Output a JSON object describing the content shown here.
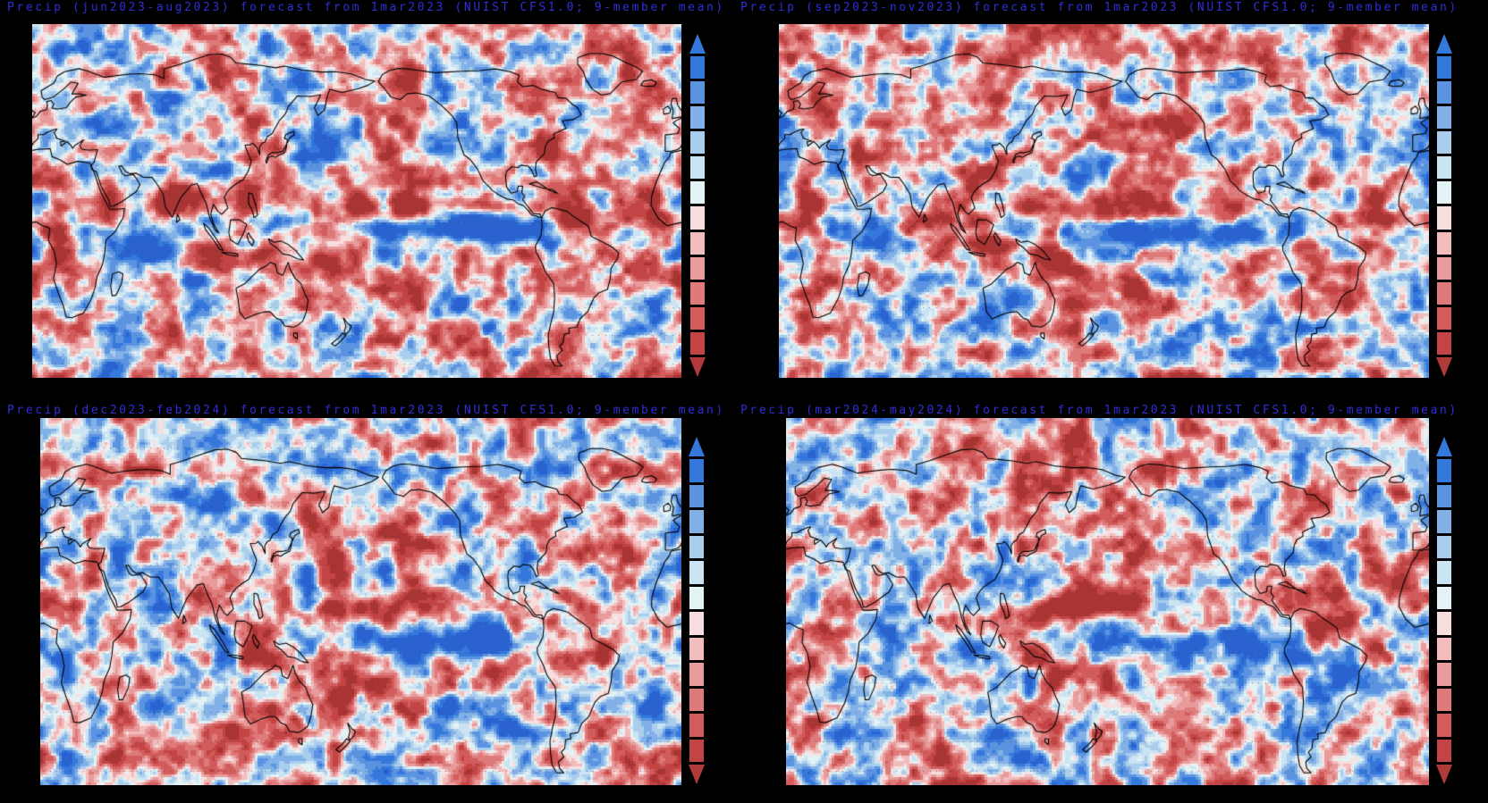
{
  "figure": {
    "background": "#000000",
    "title_color": "#2e2ed8"
  },
  "chart_data": {
    "type": "heatmap",
    "variable": "Precip",
    "model": "NUIST CFS1.0",
    "ensemble": "9-member mean",
    "forecast_initialization": "1mar2023",
    "map": {
      "projection": "equirectangular",
      "lon_range": [
        0,
        360
      ],
      "lat_range": [
        -60,
        90
      ],
      "coastline_color": "#000000",
      "grid_dot_color": "rgba(45,45,45,0.55)",
      "grid_lat_step_deg": 12
    },
    "thresholds": [
      -1.15,
      -0.88,
      -0.62,
      -0.42,
      -0.26,
      -0.12,
      0,
      0.12,
      0.26,
      0.42,
      0.62,
      0.88,
      1.15
    ],
    "field_palette": [
      "#a83434",
      "#c24444",
      "#d25c5c",
      "#de7a7a",
      "#e89b9b",
      "#f1bcbc",
      "#f8dede",
      "#e3f2f5",
      "#cbe4f3",
      "#a9cdec",
      "#82b1e7",
      "#5b93e0",
      "#3578dc",
      "#2a63d0"
    ],
    "colorbar": {
      "orientation": "vertical",
      "colors_top_to_bottom": [
        "#3578dc",
        "#5b93e0",
        "#82b1e7",
        "#a9cdec",
        "#cbe4f3",
        "#e3f2f5",
        "#f8dede",
        "#f1bcbc",
        "#e89b9b",
        "#de7a7a",
        "#d25c5c",
        "#c24444"
      ],
      "top_arrow": "#3578dc",
      "bottom_arrow": "#b03a3a",
      "labels": []
    },
    "bias": -0.02,
    "anomaly_sign_convention": "amp > 0 = wet anomaly (blue), amp < 0 = dry anomaly (red); features are [lon, lat, rx_deg, ry_deg, amp, tilt_deg]",
    "panels": [
      {
        "id": "panel-jja2023",
        "season": "jun2023-aug2023",
        "title": "Precip (jun2023-aug2023) forecast from 1mar2023 (NUIST CFS1.0; 9-member mean)",
        "seed": 11,
        "anomaly_features": [
          [
            225,
            4,
            58,
            5.5,
            1.55,
            0
          ],
          [
            263,
            2,
            22,
            4.5,
            1.1,
            0
          ],
          [
            196,
            13,
            46,
            5,
            -1.35,
            0
          ],
          [
            245,
            14,
            22,
            4.5,
            -0.85,
            0
          ],
          [
            80,
            17,
            14,
            8,
            -1.2,
            0
          ],
          [
            82,
            14,
            13,
            7,
            -1.0,
            0
          ],
          [
            102,
            16,
            11,
            7,
            -0.9,
            0
          ],
          [
            95,
            -8,
            14,
            6,
            -1.35,
            0
          ],
          [
            112,
            -9,
            12,
            5,
            -1.0,
            0
          ],
          [
            145,
            10,
            18,
            8,
            0.9,
            0
          ],
          [
            152,
            -6,
            12,
            6,
            0.6,
            0
          ],
          [
            172,
            -14,
            20,
            6,
            -1.2,
            -22
          ],
          [
            200,
            -22,
            20,
            6,
            -0.95,
            -22
          ],
          [
            62,
            -6,
            20,
            7,
            1.2,
            0
          ],
          [
            48,
            12,
            12,
            7,
            -0.9,
            0
          ],
          [
            310,
            7,
            26,
            6,
            -1.1,
            0
          ],
          [
            338,
            11,
            13,
            5,
            -0.75,
            0
          ],
          [
            237,
            -32,
            20,
            8,
            0.65,
            0
          ],
          [
            158,
            37,
            16,
            7,
            0.55,
            0
          ],
          [
            120,
            -27,
            16,
            8,
            -0.5,
            0
          ],
          [
            22,
            -6,
            13,
            8,
            -0.6,
            0
          ],
          [
            355,
            45,
            14,
            8,
            -0.45,
            0
          ],
          [
            255,
            50,
            18,
            8,
            0.45,
            0
          ],
          [
            288,
            37,
            10,
            6,
            -0.6,
            0
          ],
          [
            35,
            25,
            15,
            8,
            -0.5,
            0
          ]
        ]
      },
      {
        "id": "panel-son2023",
        "season": "sep2023-nov2023",
        "title": "Precip (sep2023-nov2023) forecast from 1mar2023 (NUIST CFS1.0; 9-member mean)",
        "seed": 22,
        "anomaly_features": [
          [
            215,
            2,
            55,
            5,
            1.45,
            0
          ],
          [
            260,
            0,
            22,
            4.5,
            1.05,
            0
          ],
          [
            192,
            10,
            46,
            5,
            -1.2,
            0
          ],
          [
            118,
            -5,
            18,
            8,
            -1.35,
            0
          ],
          [
            142,
            -7,
            12,
            6,
            -1.0,
            0
          ],
          [
            165,
            -15,
            22,
            6,
            -1.1,
            -24
          ],
          [
            198,
            -24,
            20,
            6,
            -0.9,
            -24
          ],
          [
            130,
            33,
            20,
            6,
            -1.0,
            22
          ],
          [
            172,
            42,
            22,
            7,
            -0.9,
            10
          ],
          [
            213,
            49,
            16,
            6,
            -0.8,
            0
          ],
          [
            178,
            33,
            13,
            6,
            0.8,
            0
          ],
          [
            135,
            43,
            8,
            5,
            0.75,
            0
          ],
          [
            234,
            33,
            10,
            9,
            0.7,
            0
          ],
          [
            55,
            -5,
            18,
            7,
            0.9,
            0
          ],
          [
            78,
            20,
            9,
            6,
            0.6,
            0
          ],
          [
            62,
            8,
            12,
            6,
            -0.7,
            0
          ],
          [
            310,
            5,
            26,
            7,
            -1.05,
            0
          ],
          [
            336,
            9,
            14,
            6,
            -0.8,
            0
          ],
          [
            295,
            40,
            10,
            7,
            0.55,
            0
          ],
          [
            25,
            10,
            14,
            7,
            -0.55,
            0
          ],
          [
            250,
            -35,
            18,
            8,
            0.55,
            0
          ]
        ]
      },
      {
        "id": "panel-djf2023",
        "season": "dec2023-feb2024",
        "title": "Precip (dec2023-feb2024) forecast from 1mar2023 (NUIST CFS1.0; 9-member mean)",
        "seed": 33,
        "anomaly_features": [
          [
            213,
            -1,
            56,
            6.5,
            1.6,
            0
          ],
          [
            258,
            -3,
            26,
            5.5,
            1.15,
            0
          ],
          [
            178,
            11,
            44,
            5,
            -1.2,
            5
          ],
          [
            228,
            14,
            26,
            5,
            -0.85,
            0
          ],
          [
            122,
            3,
            16,
            7,
            -1.3,
            0
          ],
          [
            130,
            -12,
            18,
            7,
            -1.15,
            -15
          ],
          [
            158,
            -17,
            20,
            7,
            -1.15,
            -20
          ],
          [
            192,
            -24,
            20,
            6,
            -0.9,
            -20
          ],
          [
            300,
            -7,
            17,
            8,
            -1.05,
            0
          ],
          [
            192,
            37,
            26,
            7,
            -0.95,
            5
          ],
          [
            240,
            30,
            14,
            6,
            0.8,
            0
          ],
          [
            272,
            27,
            14,
            6,
            0.8,
            0
          ],
          [
            322,
            33,
            18,
            7,
            -0.75,
            0
          ],
          [
            80,
            -7,
            20,
            7,
            0.85,
            0
          ],
          [
            105,
            -3,
            10,
            5,
            0.7,
            0
          ],
          [
            30,
            -18,
            15,
            8,
            -0.65,
            0
          ],
          [
            115,
            -28,
            16,
            8,
            -0.6,
            0
          ],
          [
            340,
            -28,
            14,
            8,
            0.5,
            0
          ],
          [
            65,
            8,
            14,
            7,
            0.6,
            0
          ],
          [
            135,
            45,
            12,
            6,
            0.5,
            0
          ]
        ]
      },
      {
        "id": "panel-mam2024",
        "season": "mar2024-may2024",
        "title": "Precip (mar2024-may2024) forecast from 1mar2023 (NUIST CFS1.0; 9-member mean)",
        "seed": 44,
        "anomaly_features": [
          [
            215,
            -1,
            52,
            5,
            1.25,
            0
          ],
          [
            252,
            -4,
            24,
            5,
            0.9,
            -5
          ],
          [
            172,
            13,
            50,
            6,
            -1.3,
            3
          ],
          [
            132,
            8,
            18,
            7,
            -1.05,
            0
          ],
          [
            112,
            -4,
            16,
            6,
            0.95,
            0
          ],
          [
            140,
            -10,
            16,
            6,
            -0.9,
            -15
          ],
          [
            178,
            -18,
            20,
            6,
            -0.8,
            -22
          ],
          [
            225,
            -12,
            22,
            6,
            0.7,
            -15
          ],
          [
            300,
            3,
            18,
            6,
            -0.8,
            0
          ],
          [
            297,
            20,
            14,
            6,
            -0.85,
            0
          ],
          [
            283,
            35,
            10,
            7,
            0.6,
            0
          ],
          [
            68,
            -4,
            18,
            6,
            0.75,
            0
          ],
          [
            95,
            22,
            11,
            6,
            -0.65,
            0
          ],
          [
            210,
            35,
            24,
            8,
            -0.65,
            0
          ],
          [
            255,
            -28,
            16,
            8,
            0.55,
            0
          ],
          [
            330,
            20,
            18,
            7,
            -0.65,
            0
          ],
          [
            25,
            5,
            13,
            7,
            -0.5,
            0
          ],
          [
            355,
            40,
            13,
            8,
            -0.45,
            0
          ],
          [
            145,
            -30,
            15,
            8,
            -0.5,
            0
          ]
        ]
      }
    ]
  }
}
